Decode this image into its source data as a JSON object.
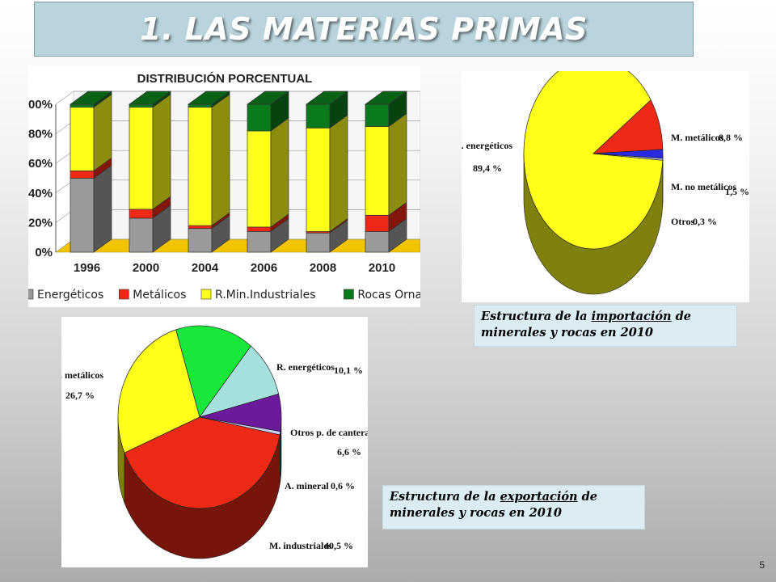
{
  "slide": {
    "title": "1. LAS MATERIAS PRIMAS",
    "number": "5"
  },
  "colors": {
    "gray": "#9a9a9a",
    "red": "#ee2a16",
    "yellow": "#ffff1a",
    "green": "#0b7a1c",
    "purple": "#6a1a9a",
    "lightblue": "#a6e0dc",
    "lightgreen": "#18e83a",
    "blue": "#2a2ae0"
  },
  "chart_data": [
    {
      "type": "bar",
      "title": "DISTRIBUCIÓN PORCENTUAL",
      "categories": [
        "1996",
        "2000",
        "2004",
        "2006",
        "2008",
        "2010"
      ],
      "y_ticks": [
        "0%",
        "20%",
        "40%",
        "60%",
        "80%",
        "100%"
      ],
      "ylim": [
        0,
        100
      ],
      "series": [
        {
          "name": "Energéticos",
          "color": "#9a9a9a",
          "values": [
            50,
            23,
            16,
            14,
            13,
            14
          ]
        },
        {
          "name": "Metálicos",
          "color": "#ee2a16",
          "values": [
            5,
            6,
            2,
            3,
            1,
            11
          ]
        },
        {
          "name": "R.Min.Industriales",
          "color": "#ffff1a",
          "values": [
            43,
            69,
            80,
            65,
            70,
            60
          ]
        },
        {
          "name": "Rocas Ornamentales",
          "color": "#0b7a1c",
          "values": [
            2,
            2,
            2,
            18,
            16,
            15
          ]
        }
      ],
      "legend": "bottom"
    },
    {
      "type": "pie",
      "caption_pre": "Estructura de la ",
      "caption_em": "importación",
      "caption_post": " de minerales y rocas en 2010",
      "slices": [
        {
          "label": "R. energéticos",
          "value_text": "89,4 %",
          "value": 89.4,
          "color": "#ffff1a"
        },
        {
          "label": "M. metálicos",
          "value_text": "8,8 %",
          "value": 8.8,
          "color": "#ee2a16"
        },
        {
          "label": "M. no metálicos",
          "value_text": "1,5 %",
          "value": 1.5,
          "color": "#2a2ae0"
        },
        {
          "label": "Otros",
          "value_text": "0,3 %",
          "value": 0.3,
          "color": "#cfd8ff"
        }
      ]
    },
    {
      "type": "pie",
      "caption_pre": "Estructura de la ",
      "caption_em": "exportación",
      "caption_post": " de minerales y rocas en 2010",
      "slices": [
        {
          "label": "M. metálicos",
          "value_text": "26,7 %",
          "value": 26.7,
          "color": "#ffff1a"
        },
        {
          "label": "",
          "value_text": "",
          "value": 15.5,
          "color": "#18e83a"
        },
        {
          "label": "R. energéticos",
          "value_text": "10,1 %",
          "value": 10.1,
          "color": "#a6e0dc"
        },
        {
          "label": "Otros p. de cantera",
          "value_text": "6,6 %",
          "value": 6.6,
          "color": "#6a1a9a"
        },
        {
          "label": "A. mineral",
          "value_text": "0,6 %",
          "value": 0.6,
          "color": "#d0d0ff"
        },
        {
          "label": "M. industriales",
          "value_text": "40,5 %",
          "value": 40.5,
          "color": "#ee2a16"
        }
      ]
    }
  ]
}
